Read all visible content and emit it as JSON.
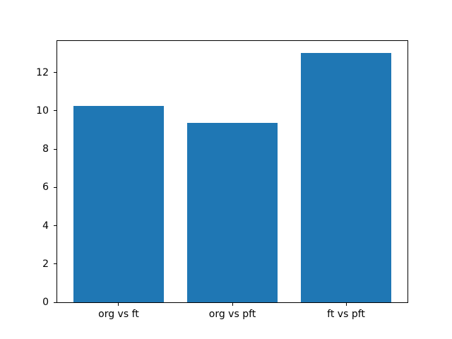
{
  "chart_data": {
    "type": "bar",
    "title": "",
    "xlabel": "",
    "ylabel": "",
    "categories": [
      "org vs ft",
      "org vs pft",
      "ft vs pft"
    ],
    "values": [
      10.27,
      9.36,
      13.03
    ],
    "yticks": [
      0,
      2,
      4,
      6,
      8,
      10,
      12
    ],
    "ylim": [
      0,
      13.65
    ],
    "xlim": [
      -0.54,
      2.54
    ],
    "bar_width": 0.8,
    "bar_color": "#1f77b4",
    "axes_color": "#000000",
    "background_color": "#ffffff",
    "grid": false,
    "legend": false
  }
}
